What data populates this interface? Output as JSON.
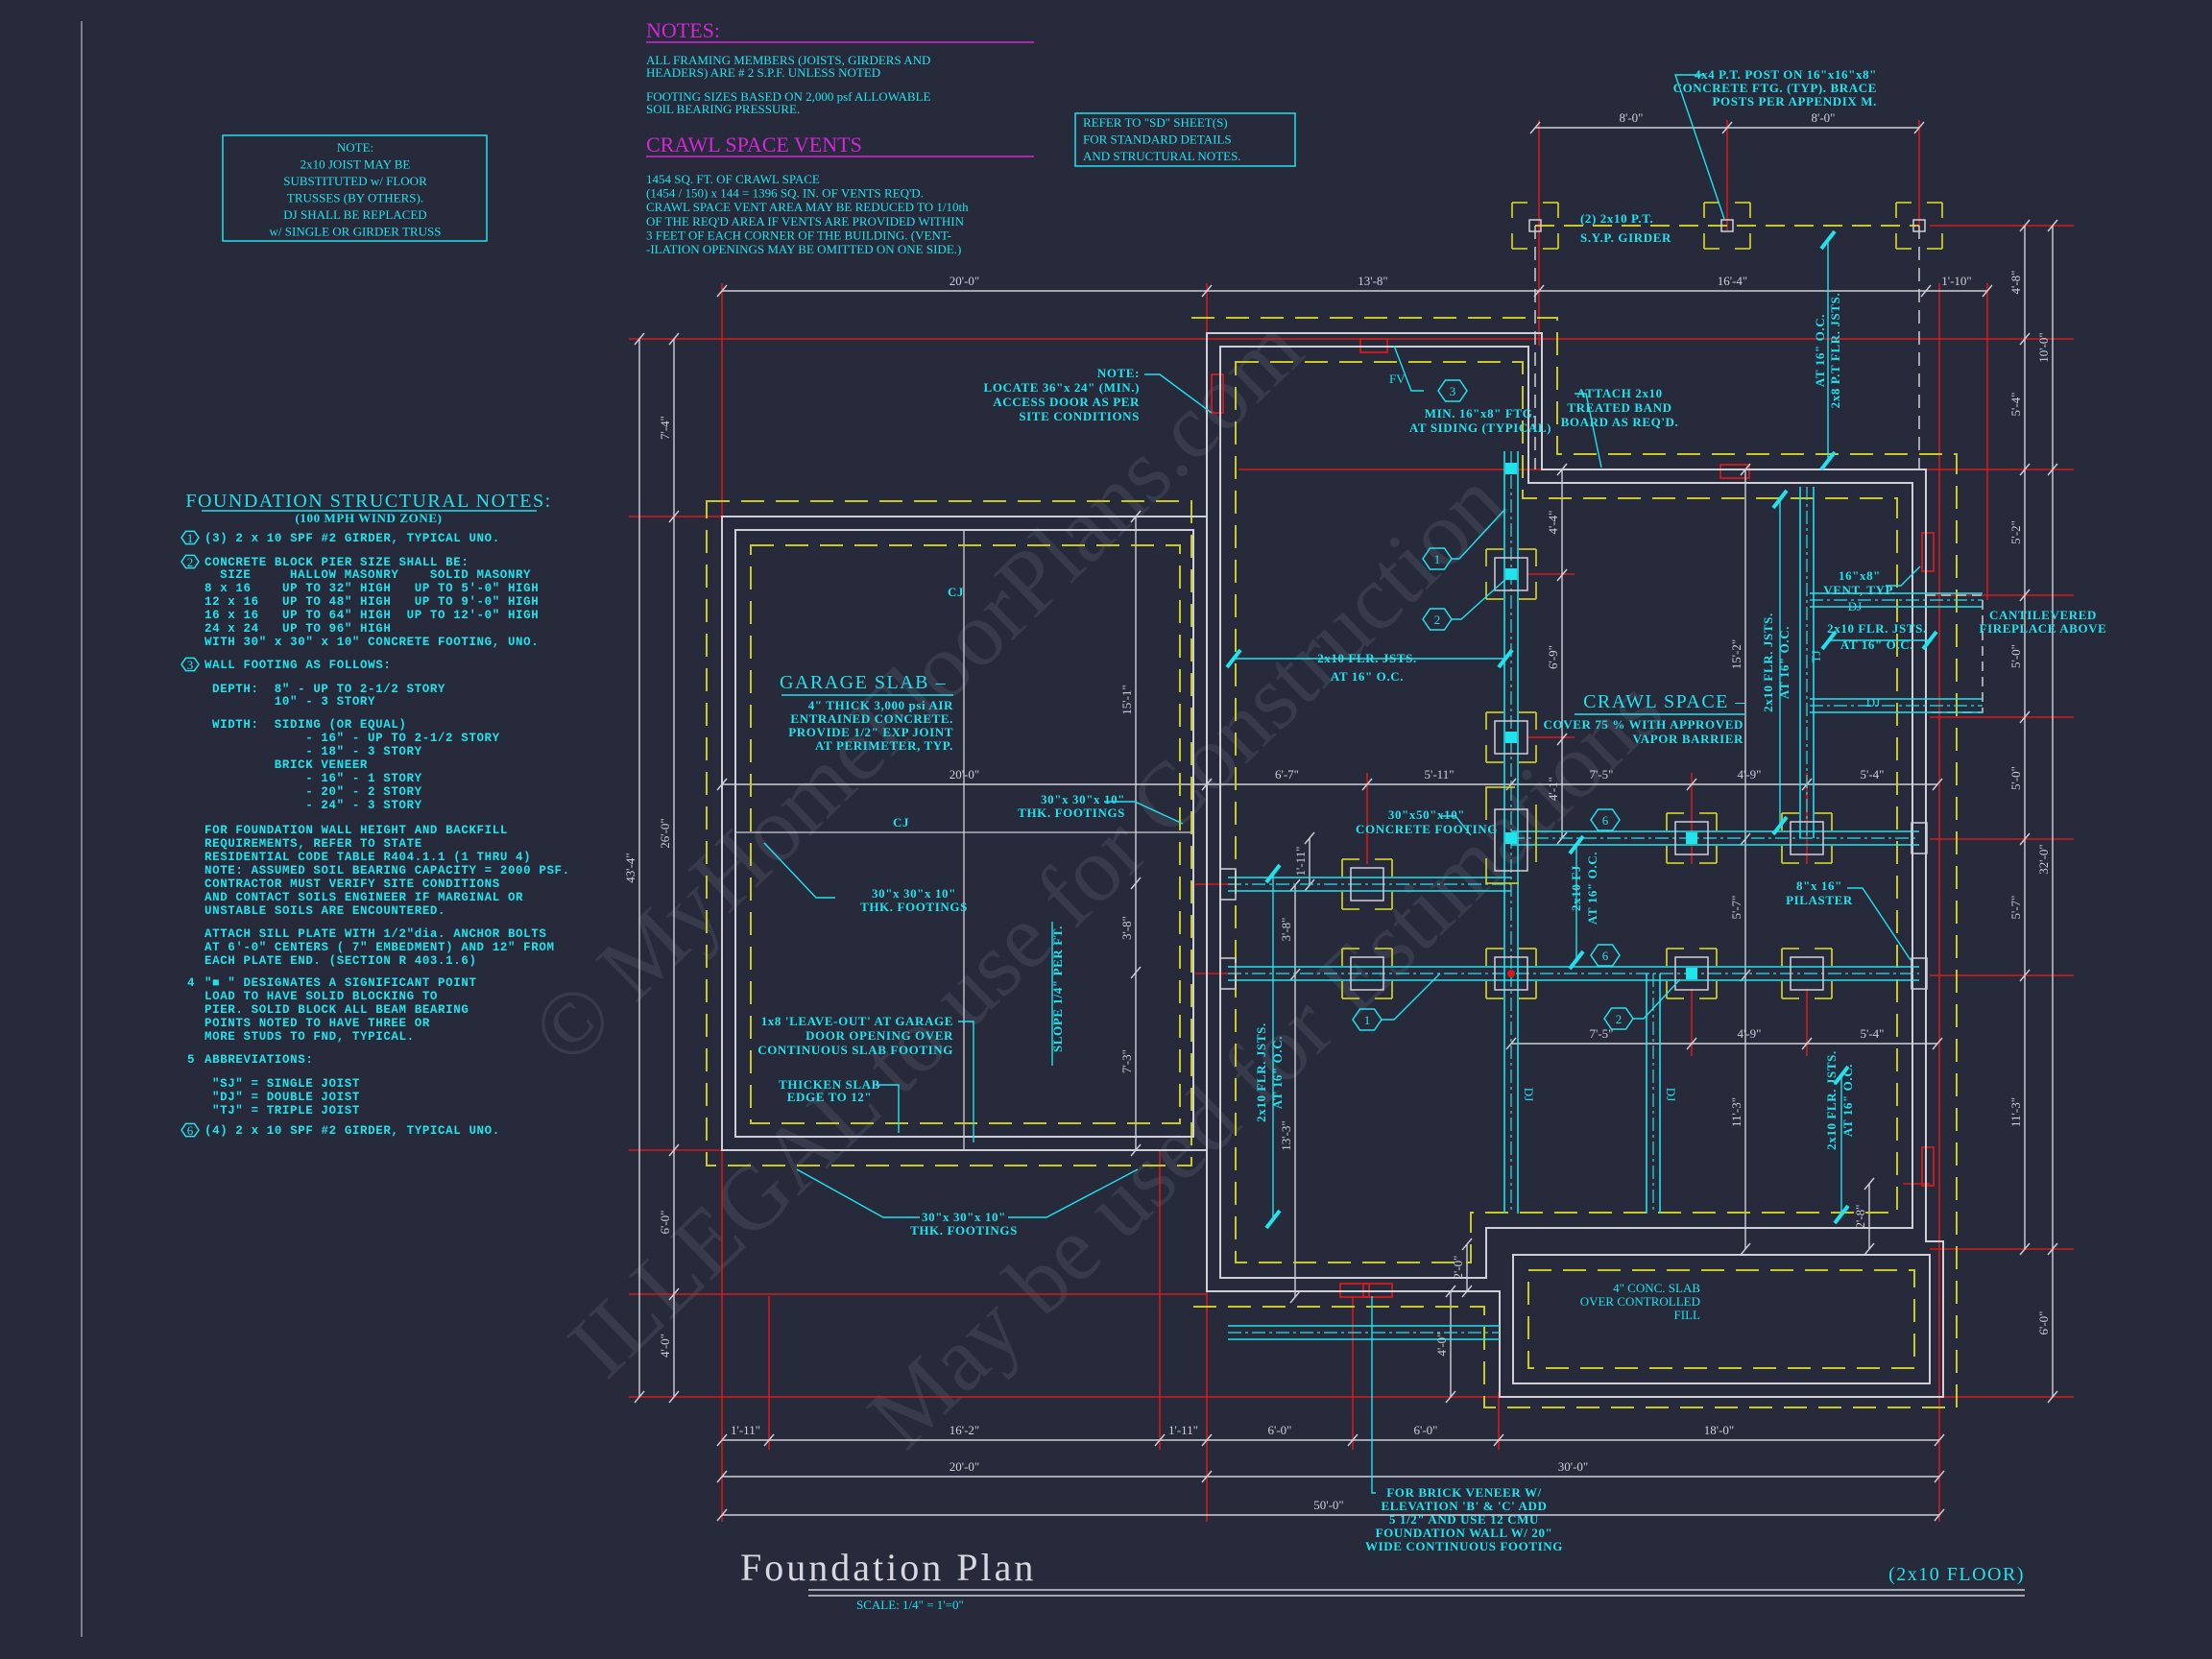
{
  "sheet": {
    "title": "Foundation Plan",
    "subtitle": "(2x10 FLOOR)",
    "scale": "SCALE: 1/4\" = 1'=0\""
  },
  "colors": {
    "background": "#262a3b",
    "annotation": "#22e2ec",
    "heading": "#d626d6",
    "footing": "#c8c828",
    "dimension_extension": "#d41c1c",
    "wall": "#cfcfd8"
  },
  "watermark": [
    "© MyHomeFloorPlans.com",
    "ILLEGAL to use for Construction",
    "May be used for Estimations"
  ],
  "note_box": [
    "NOTE:",
    "2x10 JOIST MAY BE",
    "SUBSTITUTED w/ FLOOR",
    "TRUSSES (BY OTHERS).",
    "DJ SHALL BE REPLACED",
    "w/ SINGLE OR GIRDER TRUSS"
  ],
  "notes": {
    "heading": "NOTES:",
    "p1": [
      "ALL FRAMING MEMBERS (JOISTS, GIRDERS AND",
      "HEADERS) ARE # 2 S.P.F. UNLESS NOTED"
    ],
    "p2": [
      "FOOTING SIZES BASED ON 2,000 psf ALLOWABLE",
      "SOIL BEARING PRESSURE."
    ]
  },
  "crawl_vents": {
    "heading": "CRAWL SPACE VENTS",
    "lines": [
      "1454 SQ. FT. OF CRAWL SPACE",
      "(1454 / 150) x 144 = 1396 SQ. IN. OF VENTS REQ'D.",
      "CRAWL SPACE VENT AREA MAY BE REDUCED TO 1/10th",
      "OF THE REQ'D AREA IF VENTS ARE PROVIDED WITHIN",
      "3 FEET OF EACH CORNER OF THE BUILDING.  (VENT-",
      "-ILATION OPENINGS MAY BE OMITTED ON ONE SIDE.)"
    ]
  },
  "refer_box": [
    "REFER TO \"SD\" SHEET(S)",
    "FOR STANDARD DETAILS",
    "AND STRUCTURAL NOTES."
  ],
  "structural_notes": {
    "heading": "FOUNDATION STRUCTURAL NOTES:",
    "subheading": "(100 MPH WIND ZONE)",
    "markers": [
      "1",
      "2",
      "3",
      "4",
      "5",
      "6"
    ],
    "lines": [
      "(3) 2 x 10 SPF #2 GIRDER, TYPICAL UNO.",
      "CONCRETE BLOCK PIER SIZE SHALL BE:",
      " SIZE     HALLOW MASONRY    SOLID MASONRY",
      "8 x 16    UP TO 32\" HIGH   UP TO 5'-0\" HIGH",
      "12 x 16   UP TO 48\" HIGH   UP TO 9'-0\" HIGH",
      "16 x 16   UP TO 64\" HIGH  UP TO 12'-0\" HIGH",
      "24 x 24   UP TO 96\" HIGH",
      "WITH 30\" x 30\" x 10\" CONCRETE FOOTING, UNO.",
      "WALL FOOTING AS FOLLOWS:",
      "DEPTH:  8\" - UP TO 2-1/2 STORY",
      "        10\" - 3 STORY",
      "WIDTH:  SIDING (OR EQUAL)",
      "            - 16\" - UP TO 2-1/2 STORY",
      "            - 18\" - 3 STORY",
      "        BRICK VENEER",
      "            - 16\" - 1 STORY",
      "            - 20\" - 2 STORY",
      "            - 24\" - 3 STORY",
      "FOR FOUNDATION WALL HEIGHT AND BACKFILL",
      "REQUIREMENTS, REFER TO STATE",
      "RESIDENTIAL CODE TABLE R404.1.1 (1 THRU 4)",
      "NOTE: ASSUMED SOIL BEARING CAPACITY = 2000 PSF.",
      "CONTRACTOR MUST VERIFY SITE CONDITIONS",
      "AND CONTACT SOILS ENGINEER IF MARGINAL OR",
      "UNSTABLE SOILS ARE ENCOUNTERED.",
      "ATTACH SILL PLATE WITH 1/2\"dia. ANCHOR BOLTS",
      "AT 6'-0\" CENTERS ( 7\" EMBEDMENT) AND 12\" FROM",
      "EACH PLATE END. (SECTION R 403.1.6)",
      "\"■ \" DESIGNATES A SIGNIFICANT POINT",
      "LOAD TO HAVE SOLID BLOCKING TO",
      "PIER. SOLID BLOCK ALL BEAM BEARING",
      "POINTS NOTED TO HAVE THREE OR",
      "MORE STUDS TO FND, TYPICAL.",
      "ABBREVIATIONS:",
      "\"SJ\" = SINGLE JOIST",
      "\"DJ\" = DOUBLE JOIST",
      "\"TJ\" = TRIPLE JOIST",
      "(4) 2 x 10 SPF #2 GIRDER, TYPICAL UNO."
    ]
  },
  "annotations": {
    "access_door": [
      "NOTE:",
      "LOCATE 36\"x 24\" (MIN.)",
      "ACCESS DOOR AS PER",
      "SITE CONDITIONS"
    ],
    "fv": "FV",
    "min_ftg": [
      "MIN. 16\"x8\" FTG.",
      "AT SIDING (TYPICAL)"
    ],
    "band_board": [
      "ATTACH 2x10",
      "TREATED BAND",
      "BOARD AS REQ'D."
    ],
    "porch_post": [
      "4x4 P.T. POST ON 16\"x16\"x8\"",
      "CONCRETE FTG. (TYP). BRACE",
      "POSTS PER APPENDIX M."
    ],
    "porch_girder": [
      "(2) 2x10 P.T.",
      "S.Y.P. GIRDER"
    ],
    "porch_joists": [
      "AT 16\" O.C.",
      "2x8 P.T FLR. JSTS."
    ],
    "joists_upper_left": [
      "2x10 FLR. JSTS.",
      "AT 16\" O.C."
    ],
    "garage_slab_title": "GARAGE SLAB –",
    "garage_slab_text": [
      "4\" THICK 3,000 psi AIR",
      "ENTRAINED CONCRETE.",
      "PROVIDE 1/2\" EXP JOINT",
      "AT PERIMETER, TYP."
    ],
    "cj": [
      "CJ",
      "CJ"
    ],
    "footings_right": [
      "30\"x 30\"x 10\"",
      "THK. FOOTINGS"
    ],
    "footings_left": [
      "30\"x 30\"x 10\"",
      "THK. FOOTINGS"
    ],
    "footings_bottom": [
      "30\"x 30\"x 10\"",
      "THK. FOOTINGS"
    ],
    "slope": "SLOPE 1/4\" PER FT.",
    "leave_out": [
      "1x8 'LEAVE-OUT' AT GARAGE",
      "DOOR OPENING OVER",
      "CONTINUOUS SLAB FOOTING"
    ],
    "thicken": [
      "THICKEN SLAB",
      "EDGE TO 12\""
    ],
    "crawl_title": "CRAWL SPACE –",
    "crawl_text": [
      "COVER 75 % WITH APPROVED",
      "VAPOR BARRIER"
    ],
    "concrete_footing": [
      "30\"x50\"x10\"",
      "CONCRETE FOOTING"
    ],
    "fj": [
      "2x10 FJ",
      "AT 16\" O.C."
    ],
    "pilaster": [
      "8\"x 16\"",
      "PILASTER"
    ],
    "vent": [
      "16\"x8\"",
      "VENT, TYP."
    ],
    "fireplace_joists": [
      "2x10 FLR. JSTS.",
      "AT 16\" O.C."
    ],
    "fireplace": [
      "CANTILEVERED",
      "FIREPLACE ABOVE"
    ],
    "dj": [
      "DJ",
      "DJ",
      "DJ",
      "DJ"
    ],
    "tj": "TJ",
    "joists_center": [
      "2x10 FLR. JSTS.",
      "AT 16\" O.C."
    ],
    "joists_lower_left": [
      "2x10 FLR. JSTS.",
      "AT 16\" O.C."
    ],
    "joists_lower_right": [
      "2x10 FLR. JSTS.",
      "AT 16\" O.C."
    ],
    "slab": [
      "4\" CONC. SLAB",
      "OVER CONTROLLED",
      "FILL"
    ],
    "brick_veneer": [
      "FOR BRICK VENEER W/",
      "ELEVATION 'B' & 'C' ADD",
      "5 1/2\" AND USE 12 CMU",
      "FOUNDATION WALL W/ 20\"",
      "WIDE CONTINUOUS FOOTING"
    ]
  },
  "plan_markers": [
    "1",
    "2",
    "3",
    "6",
    "6",
    "1",
    "2"
  ],
  "dimensions": {
    "top": [
      "20'-0\"",
      "13'-8\"",
      "16'-4\"",
      "1'-10\""
    ],
    "porch": [
      "8'-0\"",
      "8'-0\""
    ],
    "left_outer": "43'-4\"",
    "left_inner": [
      "7'-4\"",
      "26'-0\"",
      "6'-0\"",
      "4'-0\""
    ],
    "right_inner": [
      "4'-8\"",
      "5'-4\"",
      "5'-2\"",
      "5'-0\"",
      "5'-0\"",
      "5'-7\"",
      "11'-3\""
    ],
    "right_outer": [
      "10'-0\"",
      "32'-0\"",
      "6'-0\""
    ],
    "bottom_row1": [
      "1'-11\"",
      "16'-2\"",
      "1'-11\"",
      "6'-0\"",
      "6'-0\"",
      "18'-0\""
    ],
    "bottom_row2": [
      "20'-0\"",
      "30'-0\""
    ],
    "bottom_row3": "50'-0\"",
    "interior_upper": [
      "20'-0\"",
      "6'-7\"",
      "5'-11\"",
      "7'-5\"",
      "4'-9\"",
      "5'-4\""
    ],
    "interior_lower": [
      "7'-5\"",
      "4'-9\"",
      "5'-4\""
    ],
    "garage_vertical": [
      "15'-1\"",
      "3'-8\"",
      "7'-3\""
    ],
    "crawl_vertical_a": [
      "4'-4\"",
      "6'-9\"",
      "4'-1\""
    ],
    "crawl_vertical_b": [
      "15'-2\"",
      "5'-7\"",
      "11'-3\""
    ],
    "crawl_vertical_c": [
      "1'-11\"",
      "3'-8\"",
      "13'-3\""
    ],
    "misc": [
      "2'-0\"",
      "4'-0\"",
      "2'-8\""
    ]
  }
}
